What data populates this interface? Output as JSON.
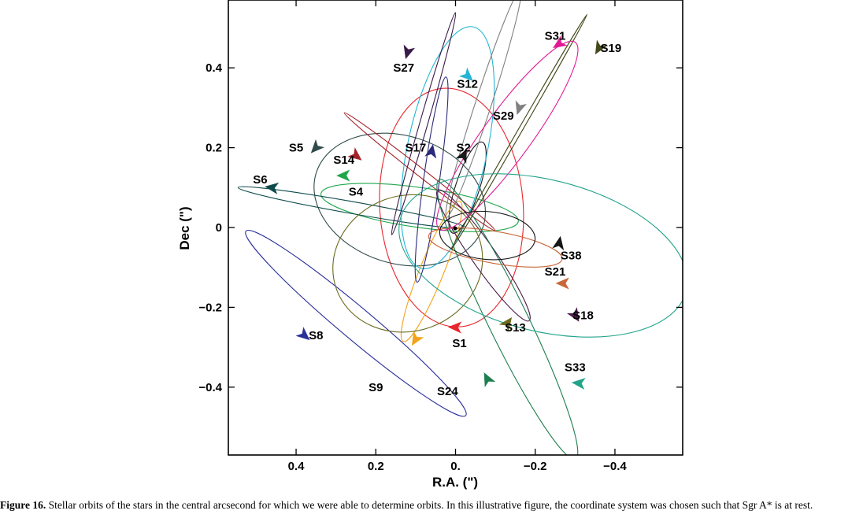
{
  "caption": {
    "label": "Figure 16.",
    "text": "Stellar orbits of the stars in the central arcsecond for which we were able to determine orbits. In this illustrative figure, the coordinate system was chosen such that Sgr A* is at rest."
  },
  "chart_data": {
    "type": "line",
    "title": "",
    "xlabel": "R.A. (\")",
    "ylabel": "Dec (\")",
    "xlim": [
      0.57,
      -0.57
    ],
    "ylim": [
      -0.57,
      0.57
    ],
    "x_ticks": [
      0.4,
      0.2,
      0,
      -0.2,
      -0.4
    ],
    "x_tick_labels": [
      "0.4",
      "0.2",
      "0.",
      "−0.2",
      "−0.4"
    ],
    "y_ticks": [
      0.4,
      0.2,
      0,
      -0.2,
      -0.4
    ],
    "y_tick_labels": [
      "0.4",
      "0.2",
      "0",
      "−0.2",
      "−0.4"
    ],
    "grid": false,
    "focus": [
      0,
      0
    ],
    "orbits": [
      {
        "name": "S1",
        "color": "#e8262c",
        "cx": 0.01,
        "cy": 0.05,
        "a": 0.3,
        "b": 0.18,
        "angle": 94,
        "arrow": [
          -0.0,
          -0.25
        ],
        "arrow_dir": 1,
        "label_at": [
          -0.01,
          -0.29
        ]
      },
      {
        "name": "S2",
        "color": "#1a1a1a",
        "cx": -0.03,
        "cy": 0.1,
        "a": 0.12,
        "b": 0.03,
        "angle": 72,
        "arrow": [
          -0.02,
          0.18
        ],
        "arrow_dir": 1,
        "label_at": [
          -0.02,
          0.2
        ]
      },
      {
        "name": "S4",
        "color": "#1fa64a",
        "cx": 0.09,
        "cy": 0.05,
        "a": 0.25,
        "b": 0.05,
        "angle": -8,
        "arrow": [
          0.28,
          0.13
        ],
        "arrow_dir": -1,
        "label_at": [
          0.25,
          0.09
        ]
      },
      {
        "name": "S5",
        "color": "#2f4b4b",
        "cx": 0.14,
        "cy": 0.07,
        "a": 0.22,
        "b": 0.16,
        "angle": -18,
        "arrow": [
          0.35,
          0.2
        ],
        "arrow_dir": -1,
        "label_at": [
          0.4,
          0.2
        ]
      },
      {
        "name": "S6",
        "color": "#0d4a4a",
        "cx": 0.26,
        "cy": 0.05,
        "a": 0.29,
        "b": 0.015,
        "angle": -10,
        "arrow": [
          0.46,
          0.1
        ],
        "arrow_dir": -1,
        "label_at": [
          0.49,
          0.12
        ]
      },
      {
        "name": "S8",
        "color": "#2a2f9a",
        "cx": 0.25,
        "cy": -0.24,
        "a": 0.36,
        "b": 0.04,
        "angle": -40,
        "arrow": [
          0.38,
          -0.27
        ],
        "arrow_dir": -1,
        "label_at": [
          0.35,
          -0.27
        ]
      },
      {
        "name": "S9",
        "color": "#f4a21a",
        "cx": 0.06,
        "cy": -0.11,
        "a": 0.19,
        "b": 0.03,
        "angle": 68,
        "arrow": [
          0.1,
          -0.28
        ],
        "arrow_dir": 1,
        "label_at": [
          0.2,
          -0.4
        ]
      },
      {
        "name": "S12",
        "color": "#24b5d5",
        "cx": 0.02,
        "cy": 0.2,
        "a": 0.31,
        "b": 0.1,
        "angle": 78,
        "arrow": [
          -0.03,
          0.38
        ],
        "arrow_dir": 1,
        "label_at": [
          -0.03,
          0.36
        ]
      },
      {
        "name": "S13",
        "color": "#6a6b1e",
        "cx": 0.12,
        "cy": -0.09,
        "a": 0.19,
        "b": 0.17,
        "angle": 20,
        "arrow": [
          -0.13,
          -0.24
        ],
        "arrow_dir": -1,
        "label_at": [
          -0.15,
          -0.25
        ]
      },
      {
        "name": "S14",
        "color": "#a32328",
        "cx": 0.09,
        "cy": 0.14,
        "a": 0.24,
        "b": 0.01,
        "angle": -38,
        "arrow": [
          0.25,
          0.18
        ],
        "arrow_dir": -1,
        "label_at": [
          0.28,
          0.17
        ]
      },
      {
        "name": "S17",
        "color": "#2b2a7a",
        "cx": 0.06,
        "cy": 0.12,
        "a": 0.26,
        "b": 0.02,
        "angle": 82,
        "arrow": [
          0.06,
          0.19
        ],
        "arrow_dir": 1,
        "label_at": [
          0.1,
          0.2
        ]
      },
      {
        "name": "S18",
        "color": "#4b1b4a",
        "cx": -0.07,
        "cy": -0.07,
        "a": 0.2,
        "b": 0.03,
        "angle": 125,
        "arrow": [
          -0.3,
          -0.22
        ],
        "arrow_dir": 1,
        "label_at": [
          -0.32,
          -0.22
        ]
      },
      {
        "name": "S19",
        "color": "#44481a",
        "cx": -0.16,
        "cy": 0.24,
        "a": 0.34,
        "b": 0.005,
        "angle": 60,
        "arrow": [
          -0.36,
          0.45
        ],
        "arrow_dir": 1,
        "label_at": [
          -0.39,
          0.45
        ]
      },
      {
        "name": "S21",
        "color": "#c8673a",
        "cx": -0.1,
        "cy": -0.05,
        "a": 0.17,
        "b": 0.04,
        "angle": -10,
        "arrow": [
          -0.27,
          -0.14
        ],
        "arrow_dir": 1,
        "label_at": [
          -0.25,
          -0.11
        ]
      },
      {
        "name": "S24",
        "color": "#1d7e4f",
        "cx": -0.13,
        "cy": -0.23,
        "a": 0.39,
        "b": 0.05,
        "angle": 116,
        "arrow": [
          -0.08,
          -0.38
        ],
        "arrow_dir": 1,
        "label_at": [
          0.02,
          -0.41
        ]
      },
      {
        "name": "S27",
        "color": "#3a1a48",
        "cx": 0.08,
        "cy": 0.26,
        "a": 0.29,
        "b": 0.01,
        "angle": 74,
        "arrow": [
          0.12,
          0.44
        ],
        "arrow_dir": -1,
        "label_at": [
          0.13,
          0.4
        ]
      },
      {
        "name": "S29",
        "color": "#808080",
        "cx": -0.07,
        "cy": 0.31,
        "a": 0.3,
        "b": 0.02,
        "angle": 72,
        "arrow": [
          -0.16,
          0.3
        ],
        "arrow_dir": 1,
        "label_at": [
          -0.12,
          0.28
        ]
      },
      {
        "name": "S31",
        "color": "#e11b93",
        "cx": -0.13,
        "cy": 0.23,
        "a": 0.29,
        "b": 0.06,
        "angle": 54,
        "arrow": [
          -0.26,
          0.46
        ],
        "arrow_dir": -1,
        "label_at": [
          -0.25,
          0.48
        ]
      },
      {
        "name": "S33",
        "color": "#22a38a",
        "cx": -0.22,
        "cy": -0.07,
        "a": 0.37,
        "b": 0.19,
        "angle": -14,
        "arrow": [
          -0.31,
          -0.39
        ],
        "arrow_dir": 1,
        "label_at": [
          -0.3,
          -0.35
        ]
      },
      {
        "name": "S38",
        "color": "#151515",
        "cx": -0.08,
        "cy": -0.02,
        "a": 0.12,
        "b": 0.06,
        "angle": -5,
        "arrow": [
          -0.26,
          -0.04
        ],
        "arrow_dir": -1,
        "label_at": [
          -0.29,
          -0.07
        ]
      }
    ]
  }
}
